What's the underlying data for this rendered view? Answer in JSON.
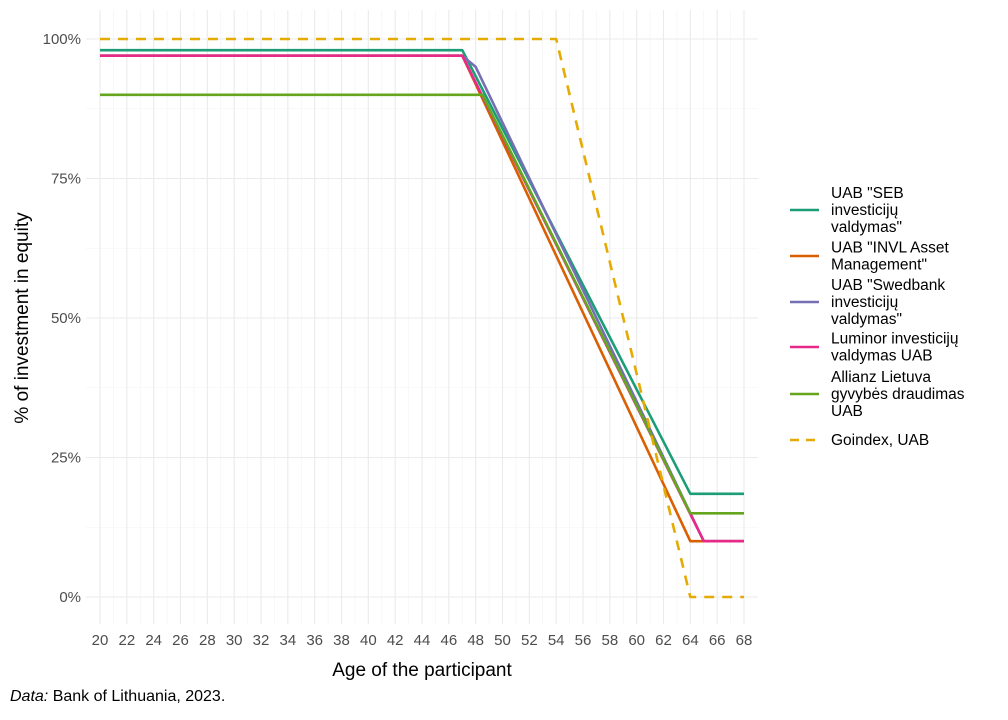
{
  "chart_data": {
    "type": "line",
    "title": "",
    "xlabel": "Age of the participant",
    "ylabel": "% of investment in equity",
    "xlim": [
      20,
      68
    ],
    "ylim": [
      0,
      100
    ],
    "x_ticks": [
      20,
      22,
      24,
      26,
      28,
      30,
      32,
      34,
      36,
      38,
      40,
      42,
      44,
      46,
      48,
      50,
      52,
      54,
      56,
      58,
      60,
      62,
      64,
      66,
      68
    ],
    "y_ticks": [
      0,
      25,
      50,
      75,
      100
    ],
    "y_tick_labels": [
      "0%",
      "25%",
      "50%",
      "75%",
      "100%"
    ],
    "grid": true,
    "legend_position": "right",
    "series": [
      {
        "name": "UAB \"SEB investicijų valdymas\"",
        "color": "#1b9e77",
        "dash": "solid",
        "points": [
          [
            20,
            98
          ],
          [
            47,
            98
          ],
          [
            64,
            18.5
          ],
          [
            68,
            18.5
          ]
        ]
      },
      {
        "name": "UAB \"INVL Asset Management\"",
        "color": "#d95f02",
        "dash": "solid",
        "points": [
          [
            20,
            97
          ],
          [
            47,
            97
          ],
          [
            64,
            10
          ],
          [
            68,
            10
          ]
        ]
      },
      {
        "name": "UAB \"Swedbank investicijų valdymas\"",
        "color": "#7570b3",
        "dash": "solid",
        "points": [
          [
            20,
            97
          ],
          [
            47,
            97
          ],
          [
            48,
            95
          ],
          [
            65,
            10
          ],
          [
            68,
            10
          ]
        ]
      },
      {
        "name": "Luminor investicijų valdymas UAB",
        "color": "#e7298a",
        "dash": "solid",
        "points": [
          [
            20,
            97
          ],
          [
            47,
            97
          ],
          [
            65,
            10
          ],
          [
            68,
            10
          ]
        ]
      },
      {
        "name": "Allianz Lietuva gyvybės draudimas UAB",
        "color": "#66a61e",
        "dash": "solid",
        "points": [
          [
            20,
            90
          ],
          [
            48.5,
            90
          ],
          [
            64,
            15
          ],
          [
            68,
            15
          ]
        ]
      },
      {
        "name": "Goindex, UAB",
        "color": "#e6ab02",
        "dash": "dashed",
        "points": [
          [
            20,
            100
          ],
          [
            54,
            100
          ],
          [
            64,
            0
          ],
          [
            68,
            0
          ]
        ]
      }
    ]
  },
  "legend": {
    "items": [
      {
        "lines": [
          "UAB \"SEB",
          "investicijų",
          "valdymas\""
        ],
        "color": "#1b9e77",
        "dash": "solid"
      },
      {
        "lines": [
          "UAB \"INVL Asset",
          "Management\""
        ],
        "color": "#d95f02",
        "dash": "solid"
      },
      {
        "lines": [
          "UAB \"Swedbank",
          "investicijų",
          "valdymas\""
        ],
        "color": "#7570b3",
        "dash": "solid"
      },
      {
        "lines": [
          "Luminor investicijų",
          "valdymas UAB"
        ],
        "color": "#e7298a",
        "dash": "solid"
      },
      {
        "lines": [
          "Allianz Lietuva",
          "gyvybės draudimas",
          "UAB"
        ],
        "color": "#66a61e",
        "dash": "solid"
      },
      {
        "lines": [
          "Goindex, UAB"
        ],
        "color": "#e6ab02",
        "dash": "dashed"
      }
    ]
  },
  "caption": {
    "label": "Data:",
    "text": " Bank of Lithuania, 2023."
  }
}
